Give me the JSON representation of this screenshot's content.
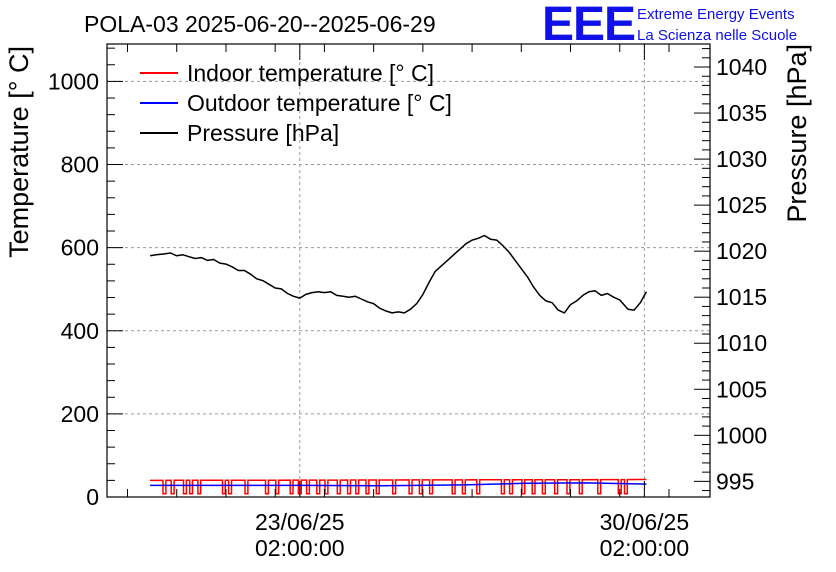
{
  "chart_data": {
    "type": "line",
    "title": "POLA-03 2025-06-20--2025-06-29",
    "ylabel": "Temperature [° C]",
    "y2label": "Pressure [hPa]",
    "ylim": [
      0,
      1090
    ],
    "y2lim": [
      993.3,
      1042.5
    ],
    "x_range_hours": [
      -94,
      200
    ],
    "y_ticks": [
      0,
      200,
      400,
      600,
      800,
      1000
    ],
    "y_tick_labels": [
      "0",
      "200",
      "400",
      "600",
      "800",
      "1000"
    ],
    "y2_ticks": [
      995,
      1000,
      1005,
      1010,
      1015,
      1020,
      1025,
      1030,
      1035,
      1040
    ],
    "y2_tick_labels": [
      "995",
      "1000",
      "1005",
      "1010",
      "1015",
      "1020",
      "1025",
      "1030",
      "1035",
      "1040"
    ],
    "x_ticks": [
      {
        "hour": 0,
        "date": "23/06/25",
        "time": "02:00:00"
      },
      {
        "hour": 168,
        "date": "30/06/25",
        "time": "02:00:00"
      }
    ],
    "legend": [
      {
        "label": "Indoor temperature [° C]",
        "color": "#ff0000"
      },
      {
        "label": "Outdoor temperature [° C]",
        "color": "#0000ff"
      },
      {
        "label": "Pressure [hPa]",
        "color": "#000000"
      }
    ],
    "series": [
      {
        "name": "Pressure [hPa]",
        "axis": "right",
        "color": "#000000",
        "x": [
          -73,
          -70,
          -66,
          -63,
          -60,
          -57,
          -54,
          -51,
          -48,
          -45,
          -42,
          -39,
          -36,
          -33,
          -30,
          -27,
          -24,
          -21,
          -18,
          -15,
          -12,
          -9,
          -6,
          -3,
          0,
          3,
          6,
          9,
          12,
          15,
          18,
          21,
          24,
          27,
          30,
          33,
          36,
          39,
          42,
          45,
          48,
          51,
          54,
          57,
          60,
          63,
          66,
          69,
          72,
          75,
          78,
          81,
          84,
          87,
          90,
          93,
          96,
          99,
          102,
          105,
          108,
          111,
          114,
          117,
          120,
          123,
          126,
          129,
          132,
          135,
          138,
          141,
          144,
          147,
          150,
          153,
          156,
          158,
          160,
          163,
          166,
          169
        ],
        "values": [
          1019.5,
          1019.6,
          1019.7,
          1019.8,
          1019.5,
          1019.6,
          1019.4,
          1019.2,
          1019.3,
          1019.0,
          1019.1,
          1018.7,
          1018.6,
          1018.3,
          1017.9,
          1017.9,
          1017.5,
          1017.0,
          1016.8,
          1016.4,
          1016.0,
          1015.9,
          1015.4,
          1015.1,
          1014.9,
          1015.3,
          1015.5,
          1015.6,
          1015.5,
          1015.6,
          1015.2,
          1015.1,
          1015.0,
          1015.1,
          1014.8,
          1014.5,
          1014.3,
          1013.8,
          1013.5,
          1013.3,
          1013.4,
          1013.3,
          1013.7,
          1014.3,
          1015.3,
          1016.6,
          1017.8,
          1018.4,
          1019.0,
          1019.6,
          1020.2,
          1020.8,
          1021.2,
          1021.4,
          1021.7,
          1021.3,
          1021.2,
          1020.6,
          1019.9,
          1019.0,
          1018.1,
          1017.2,
          1016.1,
          1015.2,
          1014.6,
          1014.4,
          1013.6,
          1013.3,
          1014.2,
          1014.6,
          1015.2,
          1015.6,
          1015.7,
          1015.2,
          1015.4,
          1015.0,
          1014.7,
          1014.2,
          1013.7,
          1013.6,
          1014.4,
          1015.6
        ]
      },
      {
        "name": "Indoor temperature [° C]",
        "axis": "left",
        "color": "#ff0000",
        "x": [
          -73,
          169
        ],
        "values": [
          40,
          42
        ],
        "dropouts_hours": [
          -66,
          -62,
          -56,
          -53,
          -49,
          -37,
          -34,
          -26,
          -16,
          -11,
          -4,
          0,
          4,
          9,
          13,
          19,
          24,
          28,
          33,
          38,
          46,
          54,
          59,
          64,
          75,
          80,
          87,
          99,
          103,
          109,
          114,
          119,
          125,
          131,
          137,
          146,
          156,
          159
        ],
        "dropout_value": 8
      },
      {
        "name": "Outdoor temperature [° C]",
        "axis": "left",
        "color": "#0000ff",
        "x": [
          -73,
          -40,
          0,
          40,
          80,
          110,
          140,
          169
        ],
        "values": [
          28,
          28,
          28,
          27,
          29,
          33,
          34,
          31
        ]
      }
    ]
  },
  "branding": {
    "logo": "EEE",
    "line1": "Extreme Energy Events",
    "line2": "La Scienza nelle Scuole"
  }
}
